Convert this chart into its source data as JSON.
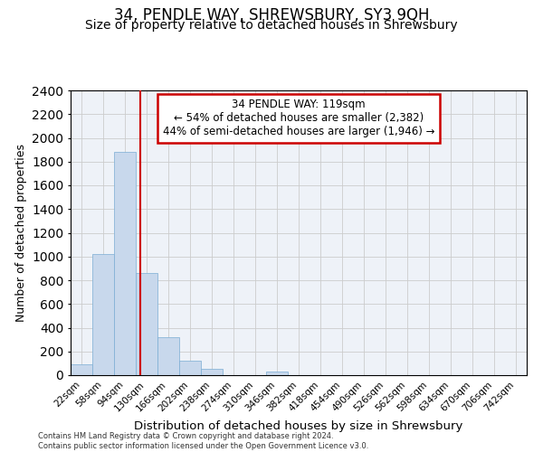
{
  "title": "34, PENDLE WAY, SHREWSBURY, SY3 9QH",
  "subtitle": "Size of property relative to detached houses in Shrewsbury",
  "xlabel": "Distribution of detached houses by size in Shrewsbury",
  "ylabel": "Number of detached properties",
  "bin_labels": [
    "22sqm",
    "58sqm",
    "94sqm",
    "130sqm",
    "166sqm",
    "202sqm",
    "238sqm",
    "274sqm",
    "310sqm",
    "346sqm",
    "382sqm",
    "418sqm",
    "454sqm",
    "490sqm",
    "526sqm",
    "562sqm",
    "598sqm",
    "634sqm",
    "670sqm",
    "706sqm",
    "742sqm"
  ],
  "bar_values": [
    90,
    1020,
    1880,
    860,
    320,
    120,
    50,
    0,
    0,
    30,
    0,
    0,
    0,
    0,
    0,
    0,
    0,
    0,
    0,
    0,
    0
  ],
  "bar_color": "#c8d8ec",
  "bar_edge_color": "#7aadd4",
  "vline_color": "#cc0000",
  "annotation_line1": "34 PENDLE WAY: 119sqm",
  "annotation_line2": "← 54% of detached houses are smaller (2,382)",
  "annotation_line3": "44% of semi-detached houses are larger (1,946) →",
  "annotation_box_color": "#cc0000",
  "ylim": [
    0,
    2400
  ],
  "yticks": [
    0,
    200,
    400,
    600,
    800,
    1000,
    1200,
    1400,
    1600,
    1800,
    2000,
    2200,
    2400
  ],
  "grid_color": "#cccccc",
  "bg_color": "#eef2f8",
  "footer_line1": "Contains HM Land Registry data © Crown copyright and database right 2024.",
  "footer_line2": "Contains public sector information licensed under the Open Government Licence v3.0.",
  "title_fontsize": 12,
  "subtitle_fontsize": 10,
  "vline_x": 2.72
}
